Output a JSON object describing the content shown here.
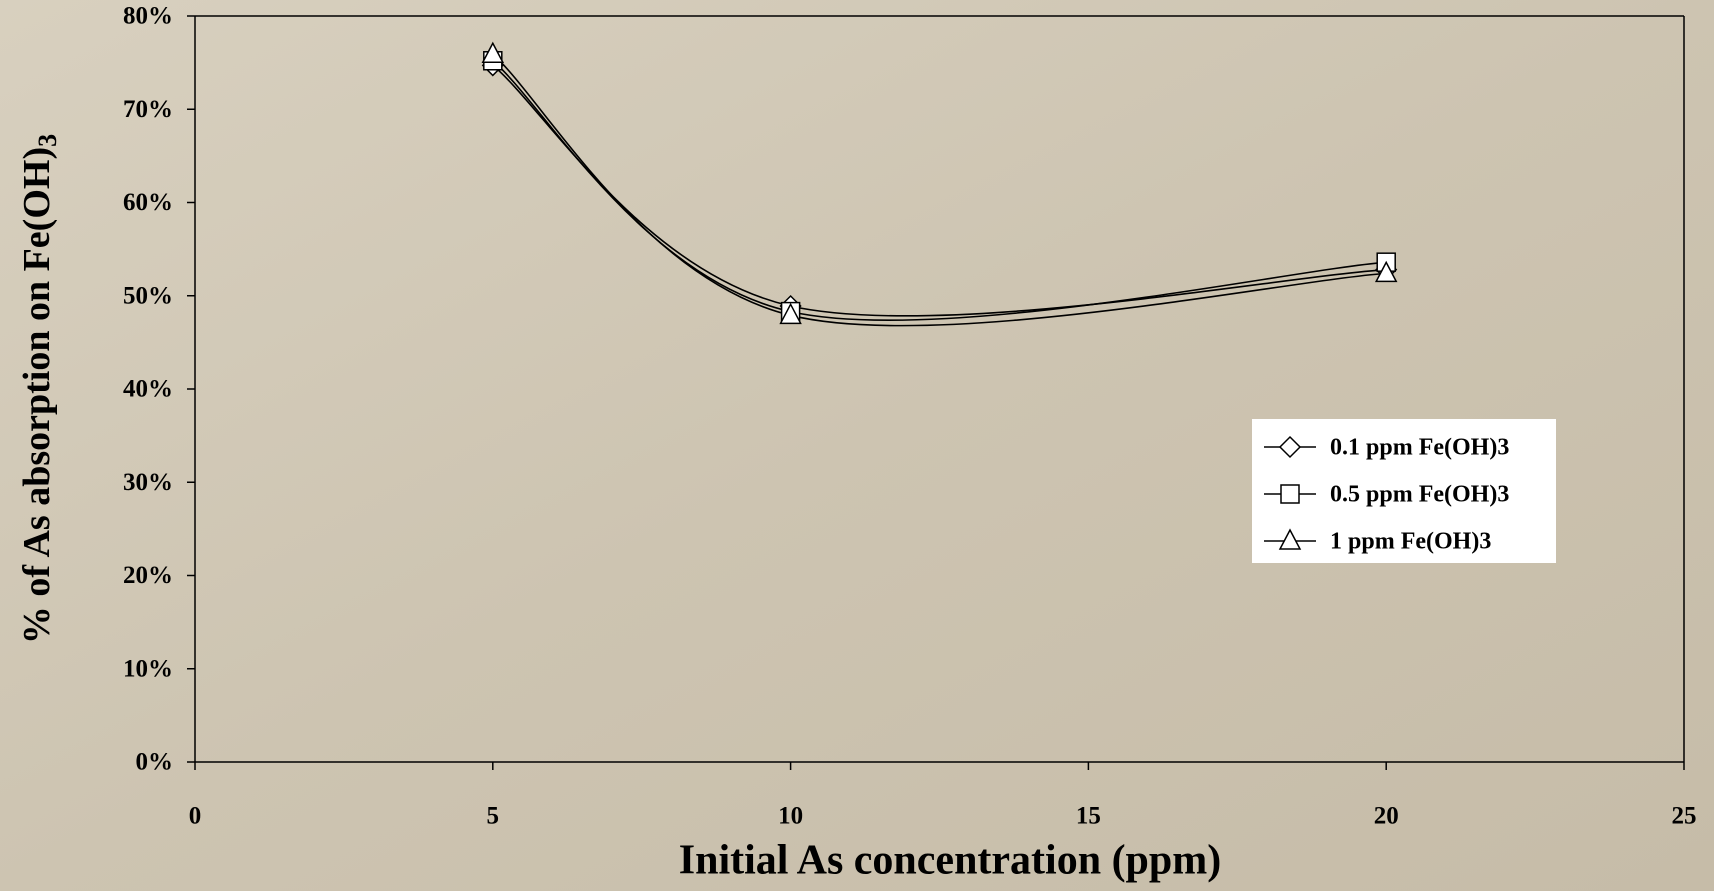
{
  "chart_data": {
    "type": "line",
    "smooth": true,
    "x_label": "Initial As concentration (ppm)",
    "y_label": "% of As absorption on Fe(OH)",
    "y_label_subscript": "3",
    "x": [
      5,
      10,
      20
    ],
    "series": [
      {
        "name": "0.1 ppm Fe(OH)3",
        "color": "#000000",
        "marker": "diamond",
        "values": [
          74.7,
          48.9,
          52.8
        ]
      },
      {
        "name": "0.5 ppm Fe(OH)3",
        "color": "#000000",
        "marker": "square",
        "values": [
          75.2,
          48.3,
          53.6
        ]
      },
      {
        "name": "1 ppm Fe(OH)3",
        "color": "#000000",
        "marker": "triangle",
        "values": [
          75.9,
          47.9,
          52.4
        ]
      }
    ],
    "xlim": [
      0,
      25
    ],
    "xticks": [
      0,
      5,
      10,
      15,
      20,
      25
    ],
    "ylim": [
      0,
      80
    ],
    "yticks": [
      {
        "value": 0,
        "label": "0%"
      },
      {
        "value": 10,
        "label": "10%"
      },
      {
        "value": 20,
        "label": "20%"
      },
      {
        "value": 30,
        "label": "30%"
      },
      {
        "value": 40,
        "label": "40%"
      },
      {
        "value": 50,
        "label": "50%"
      },
      {
        "value": 60,
        "label": "60%"
      },
      {
        "value": 70,
        "label": "70%"
      },
      {
        "value": 80,
        "label": "80%"
      }
    ],
    "grid": false,
    "legend": "right"
  }
}
